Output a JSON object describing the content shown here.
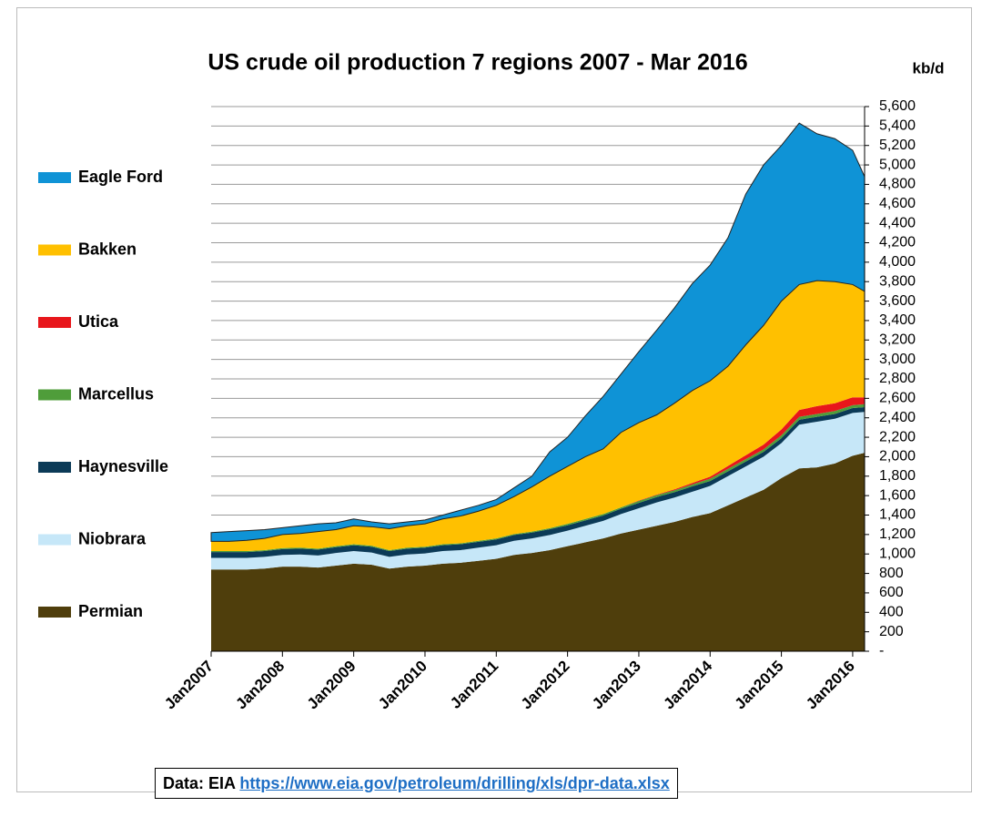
{
  "chart_data": {
    "type": "stacked-area",
    "title": "US crude oil production  7 regions 2007 - Mar 2016",
    "y_label": "kb/d",
    "source_label": "Data: EIA",
    "source_link": "https://www.eia.gov/petroleum/drilling/xls/dpr-data.xlsx",
    "x": [
      2007,
      2007.25,
      2007.5,
      2007.75,
      2008,
      2008.25,
      2008.5,
      2008.75,
      2009,
      2009.25,
      2009.5,
      2009.75,
      2010,
      2010.25,
      2010.5,
      2010.75,
      2011,
      2011.25,
      2011.5,
      2011.75,
      2012,
      2012.25,
      2012.5,
      2012.75,
      2013,
      2013.25,
      2013.5,
      2013.75,
      2014,
      2014.25,
      2014.5,
      2014.75,
      2015,
      2015.25,
      2015.5,
      2015.75,
      2016,
      2016.167
    ],
    "xlim": [
      2007,
      2016.167
    ],
    "xticks": [
      {
        "value": 2007,
        "label": "Jan2007"
      },
      {
        "value": 2008,
        "label": "Jan2008"
      },
      {
        "value": 2009,
        "label": "Jan2009"
      },
      {
        "value": 2010,
        "label": "Jan2010"
      },
      {
        "value": 2011,
        "label": "Jan2011"
      },
      {
        "value": 2012,
        "label": "Jan2012"
      },
      {
        "value": 2013,
        "label": "Jan2013"
      },
      {
        "value": 2014,
        "label": "Jan2014"
      },
      {
        "value": 2015,
        "label": "Jan2015"
      },
      {
        "value": 2016,
        "label": "Jan2016"
      }
    ],
    "ylim": [
      0,
      5600
    ],
    "yticks": [
      {
        "value": 0,
        "label": "-"
      },
      200,
      400,
      600,
      800,
      {
        "value": 1000,
        "label": "1,000"
      },
      {
        "value": 1200,
        "label": "1,200"
      },
      {
        "value": 1400,
        "label": "1,400"
      },
      {
        "value": 1600,
        "label": "1,600"
      },
      {
        "value": 1800,
        "label": "1,800"
      },
      {
        "value": 2000,
        "label": "2,000"
      },
      {
        "value": 2200,
        "label": "2,200"
      },
      {
        "value": 2400,
        "label": "2,400"
      },
      {
        "value": 2600,
        "label": "2,600"
      },
      {
        "value": 2800,
        "label": "2,800"
      },
      {
        "value": 3000,
        "label": "3,000"
      },
      {
        "value": 3200,
        "label": "3,200"
      },
      {
        "value": 3400,
        "label": "3,400"
      },
      {
        "value": 3600,
        "label": "3,600"
      },
      {
        "value": 3800,
        "label": "3,800"
      },
      {
        "value": 4000,
        "label": "4,000"
      },
      {
        "value": 4200,
        "label": "4,200"
      },
      {
        "value": 4400,
        "label": "4,400"
      },
      {
        "value": 4600,
        "label": "4,600"
      },
      {
        "value": 4800,
        "label": "4,800"
      },
      {
        "value": 5000,
        "label": "5,000"
      },
      {
        "value": 5200,
        "label": "5,200"
      },
      {
        "value": 5400,
        "label": "5,400"
      },
      {
        "value": 5600,
        "label": "5,600"
      }
    ],
    "grid": true,
    "legend": "left",
    "series": [
      {
        "name": "Permian",
        "color": "#4f3e0c",
        "values": [
          840,
          840,
          840,
          850,
          870,
          870,
          860,
          880,
          900,
          890,
          850,
          870,
          880,
          900,
          910,
          930,
          950,
          990,
          1010,
          1040,
          1080,
          1120,
          1160,
          1210,
          1250,
          1290,
          1330,
          1380,
          1420,
          1500,
          1580,
          1660,
          1780,
          1880,
          1890,
          1930,
          2010,
          2040
        ]
      },
      {
        "name": "Niobrara",
        "color": "#c6e7f8",
        "values": [
          120,
          120,
          120,
          120,
          120,
          125,
          125,
          130,
          130,
          125,
          120,
          125,
          125,
          130,
          130,
          135,
          140,
          145,
          150,
          155,
          160,
          170,
          180,
          200,
          220,
          240,
          250,
          260,
          280,
          300,
          320,
          340,
          360,
          450,
          470,
          460,
          440,
          420
        ]
      },
      {
        "name": "Haynesville",
        "color": "#0b3a57",
        "values": [
          60,
          60,
          60,
          60,
          60,
          60,
          60,
          60,
          60,
          60,
          60,
          60,
          60,
          60,
          60,
          60,
          60,
          60,
          60,
          60,
          55,
          55,
          55,
          55,
          55,
          55,
          55,
          55,
          50,
          50,
          50,
          50,
          50,
          50,
          50,
          50,
          50,
          50
        ]
      },
      {
        "name": "Marcellus",
        "color": "#4f9d3a",
        "values": [
          10,
          10,
          10,
          10,
          10,
          10,
          10,
          10,
          10,
          10,
          10,
          10,
          10,
          10,
          10,
          10,
          10,
          10,
          10,
          10,
          15,
          15,
          15,
          15,
          20,
          20,
          20,
          20,
          25,
          25,
          25,
          25,
          30,
          30,
          30,
          30,
          30,
          30
        ]
      },
      {
        "name": "Utica",
        "color": "#e8161b",
        "values": [
          0,
          0,
          0,
          0,
          0,
          0,
          0,
          0,
          0,
          0,
          0,
          0,
          0,
          0,
          0,
          0,
          0,
          0,
          0,
          0,
          0,
          0,
          0,
          0,
          5,
          5,
          10,
          15,
          20,
          30,
          40,
          50,
          60,
          70,
          80,
          80,
          80,
          70
        ]
      },
      {
        "name": "Bakken",
        "color": "#ffc000",
        "values": [
          100,
          100,
          110,
          120,
          140,
          145,
          175,
          170,
          190,
          195,
          220,
          225,
          235,
          260,
          280,
          305,
          340,
          385,
          460,
          535,
          590,
          640,
          670,
          770,
          800,
          820,
          885,
          950,
          985,
          1025,
          1135,
          1225,
          1320,
          1290,
          1290,
          1250,
          1160,
          1090
        ]
      },
      {
        "name": "Eagle Ford",
        "color": "#0f93d6",
        "values": [
          90,
          100,
          100,
          90,
          70,
          80,
          80,
          70,
          70,
          50,
          50,
          40,
          40,
          40,
          60,
          60,
          60,
          90,
          110,
          250,
          300,
          420,
          540,
          600,
          730,
          870,
          980,
          1100,
          1190,
          1320,
          1550,
          1650,
          1600,
          1660,
          1510,
          1470,
          1380,
          1180
        ]
      }
    ]
  }
}
